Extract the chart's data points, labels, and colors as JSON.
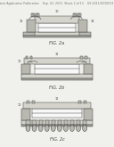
{
  "bg_color": "#f0f0ec",
  "header_text": "Patent Application Publication    Sep. 22, 2011  Sheet 2 of 13    US 2011/0230013 A1",
  "fig_labels": [
    "FIG. 2a",
    "FIG. 2b",
    "FIG. 2c"
  ],
  "lc": "#444444",
  "fill_light": "#d4d4cc",
  "fill_mid": "#b8b8b0",
  "fill_dark": "#909088",
  "fill_white": "#f8f8f8",
  "fill_gray": "#c0c0b8",
  "fill_stripe": "#a8a8a0"
}
